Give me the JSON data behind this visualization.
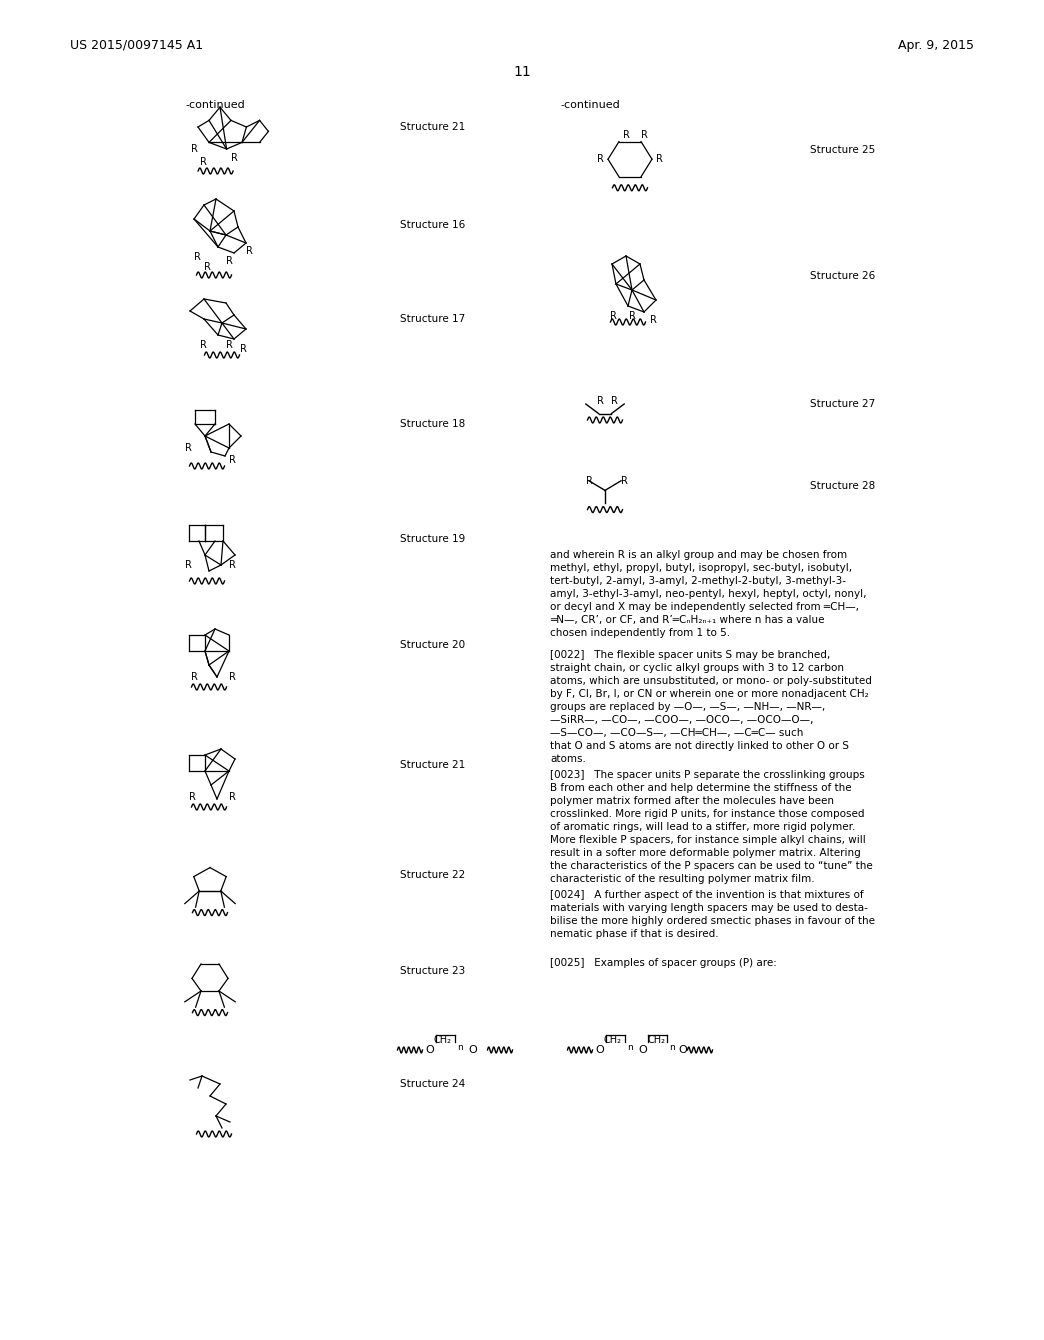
{
  "title_left": "US 2015/0097145 A1",
  "title_right": "Apr. 9, 2015",
  "page_number": "11",
  "background_color": "#ffffff",
  "text_color": "#000000",
  "continued_left": "-continued",
  "continued_right": "-continued"
}
